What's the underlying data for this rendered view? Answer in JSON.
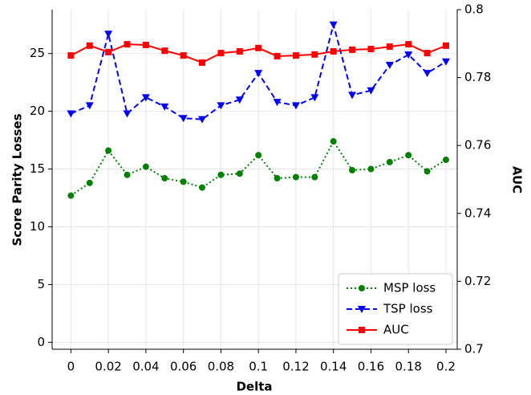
{
  "chart_data": {
    "type": "line",
    "x_label": "Delta",
    "y_label": "Score Parity Losses",
    "y2_label": "AUC",
    "x": [
      0,
      0.01,
      0.02,
      0.03,
      0.04,
      0.05,
      0.06,
      0.07,
      0.08,
      0.09,
      0.1,
      0.11,
      0.12,
      0.13,
      0.14,
      0.15,
      0.16,
      0.17,
      0.18,
      0.19,
      0.2
    ],
    "xlim": [
      -0.01,
      0.206
    ],
    "xticks": [
      0,
      0.02,
      0.04,
      0.06,
      0.08,
      0.1,
      0.12,
      0.14,
      0.16,
      0.18,
      0.2
    ],
    "ylim": [
      -0.6,
      28.8
    ],
    "yticks": [
      0,
      5,
      10,
      15,
      20,
      25
    ],
    "y2lim": [
      0.7,
      0.8
    ],
    "y2ticks": [
      0.7,
      0.72,
      0.74,
      0.76,
      0.78,
      0.8
    ],
    "grid": true,
    "legend": "lower right",
    "series": [
      {
        "name": "MSP loss",
        "color": "#008000",
        "linestyle": "dotted",
        "marker": "circle",
        "values": [
          12.7,
          13.8,
          16.6,
          14.5,
          15.2,
          14.2,
          13.9,
          13.4,
          14.5,
          14.6,
          16.2,
          14.2,
          14.3,
          14.3,
          17.4,
          14.9,
          15.0,
          15.6,
          16.2,
          14.8,
          15.8
        ]
      },
      {
        "name": "TSP loss",
        "color": "#0000ff",
        "linestyle": "dashed",
        "marker": "triangle-down",
        "values": [
          19.8,
          20.5,
          26.7,
          19.8,
          21.2,
          20.4,
          19.4,
          19.3,
          20.5,
          21.0,
          23.3,
          20.8,
          20.5,
          21.2,
          27.5,
          21.4,
          21.8,
          24.0,
          24.9,
          23.3,
          24.3
        ]
      },
      {
        "name": "AUC",
        "color": "#ff0000",
        "linestyle": "solid",
        "marker": "square",
        "axis": "y2",
        "values": [
          0.7865,
          0.7894,
          0.7875,
          0.7898,
          0.7896,
          0.7879,
          0.7865,
          0.7844,
          0.7872,
          0.7877,
          0.7887,
          0.7863,
          0.7865,
          0.7868,
          0.7877,
          0.7882,
          0.7884,
          0.7891,
          0.7898,
          0.7872,
          0.7894
        ]
      }
    ]
  }
}
